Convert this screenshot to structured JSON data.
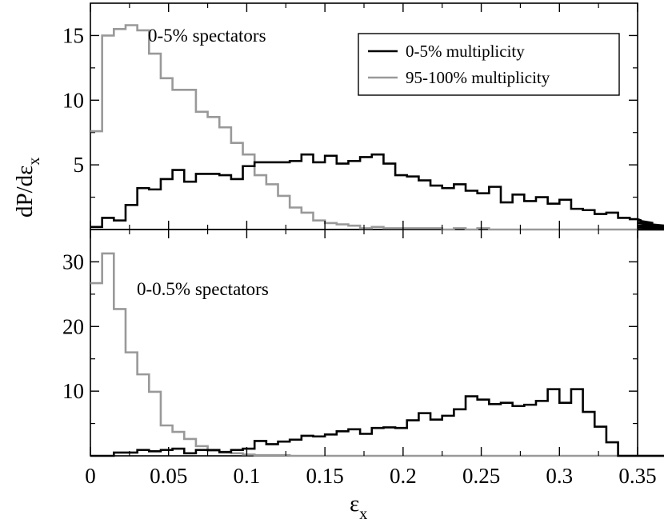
{
  "chart_data": {
    "type": "line",
    "x_axis": {
      "label": "ε",
      "label_sub": "x",
      "range": [
        0,
        0.35
      ],
      "ticks": [
        0,
        0.05,
        0.1,
        0.15,
        0.2,
        0.25,
        0.3,
        0.35
      ],
      "tick_labels": [
        "0",
        "0.05",
        "0.1",
        "0.15",
        "0.2",
        "0.25",
        "0.3",
        "0.35"
      ]
    },
    "y_axis": {
      "label": "dP/dε",
      "label_sub": "x"
    },
    "legend": {
      "position": "top-right",
      "entries": [
        {
          "name": "0-5% multiplicity",
          "color": "#000000"
        },
        {
          "name": "95-100% multiplicity",
          "color": "#999999"
        }
      ]
    },
    "bin_width": 0.0075,
    "panels": [
      {
        "name": "top",
        "annotation": "0-5% spectators",
        "ylim": [
          0,
          17.5
        ],
        "yticks": [
          5,
          10,
          15
        ],
        "ytick_labels": [
          "5",
          "10",
          "15"
        ],
        "series": [
          {
            "name": "0-5% multiplicity",
            "color": "#000000",
            "values": [
              0.2,
              0.9,
              0.7,
              1.9,
              3.2,
              3.1,
              3.9,
              4.6,
              3.7,
              4.3,
              4.3,
              4.2,
              3.9,
              4.9,
              5.2,
              5.2,
              5.2,
              5.3,
              5.8,
              5.2,
              5.7,
              5.1,
              5.3,
              5.6,
              5.8,
              5.1,
              4.2,
              4.1,
              3.8,
              3.4,
              3.2,
              3.5,
              3.0,
              2.8,
              3.3,
              2.1,
              2.7,
              2.2,
              2.5,
              2.0,
              2.3,
              1.6,
              1.5,
              1.2,
              1.3,
              0.9,
              0.8,
              0.7,
              0.5,
              0.3,
              0.2,
              0.2,
              0.1,
              0,
              0,
              0,
              0
            ]
          },
          {
            "name": "95-100% multiplicity",
            "color": "#999999",
            "values": [
              7.6,
              15.0,
              15.5,
              15.8,
              15.4,
              13.6,
              11.7,
              10.8,
              10.8,
              9.1,
              8.7,
              7.9,
              6.7,
              5.8,
              4.2,
              3.5,
              2.6,
              1.7,
              1.3,
              0.7,
              0.5,
              0.4,
              0.3,
              0.1,
              0.2,
              0.1,
              0.1,
              0.1,
              0.1,
              0.1,
              0,
              0.1,
              0,
              0.1,
              0,
              0,
              0,
              0,
              0,
              0,
              0,
              0,
              0,
              0,
              0,
              0,
              0,
              0,
              0,
              0,
              0,
              0,
              0,
              0,
              0,
              0,
              0
            ]
          }
        ]
      },
      {
        "name": "bottom",
        "annotation": "0-0.5% spectators",
        "ylim": [
          0,
          35
        ],
        "yticks": [
          10,
          20,
          30
        ],
        "ytick_labels": [
          "10",
          "20",
          "30"
        ],
        "series": [
          {
            "name": "0-5% multiplicity",
            "color": "#000000",
            "values": [
              0,
              0,
              0.5,
              0.5,
              0.9,
              0.7,
              0.9,
              1.1,
              0.4,
              0.9,
              0.9,
              0.6,
              0.9,
              1.1,
              2.3,
              1.8,
              2.2,
              2.5,
              3.1,
              3.0,
              3.3,
              3.8,
              4.1,
              3.4,
              4.3,
              4.4,
              4.3,
              5.5,
              6.6,
              5.6,
              6.2,
              7.2,
              9.2,
              8.7,
              8.0,
              8.2,
              7.7,
              7.9,
              8.5,
              10.3,
              8.2,
              10.3,
              6.8,
              4.5,
              2.1,
              0,
              0,
              0,
              0,
              0,
              0,
              0,
              0,
              0,
              0,
              0,
              0
            ]
          },
          {
            "name": "95-100% multiplicity",
            "color": "#999999",
            "values": [
              26.7,
              31.3,
              22.7,
              16.0,
              12.6,
              9.9,
              4.7,
              3.7,
              2.6,
              1.5,
              0.8,
              0.5,
              0.4,
              0.2,
              0.1,
              0.1,
              0.1,
              0,
              0,
              0,
              0,
              0,
              0,
              0,
              0,
              0,
              0,
              0,
              0,
              0,
              0,
              0,
              0,
              0,
              0,
              0,
              0,
              0,
              0,
              0,
              0,
              0,
              0,
              0,
              0,
              0,
              0,
              0,
              0,
              0,
              0,
              0,
              0,
              0,
              0,
              0,
              0
            ]
          }
        ]
      }
    ]
  }
}
